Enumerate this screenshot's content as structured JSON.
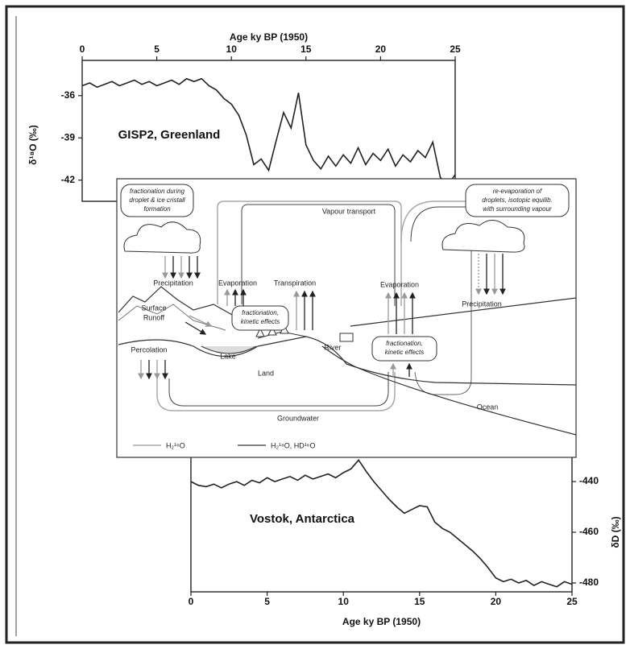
{
  "chart_data": [
    {
      "type": "line",
      "xlabel": "Age ky BP (1950)",
      "ylabel": "δ¹⁸O (‰)",
      "annotation": "GISP2, Greenland",
      "xaxis": "top",
      "yaxis": "left",
      "color": "#222222",
      "xlim": [
        0,
        25
      ],
      "xticks": [
        0,
        5,
        10,
        15,
        20,
        25
      ],
      "ylim": [
        -43.5,
        -33.5
      ],
      "yticks": [
        -36,
        -39,
        -42
      ],
      "x": [
        0,
        0.5,
        1,
        1.5,
        2,
        2.5,
        3,
        3.5,
        4,
        4.5,
        5,
        5.5,
        6,
        6.5,
        7,
        7.5,
        8,
        8.5,
        9,
        9.5,
        10,
        10.5,
        11,
        11.5,
        12,
        12.5,
        13,
        13.5,
        14,
        14.5,
        15,
        15.5,
        16,
        16.5,
        17,
        17.5,
        18,
        18.5,
        19,
        19.5,
        20,
        20.5,
        21,
        21.5,
        22,
        22.5,
        23,
        23.5,
        24,
        24.5,
        25
      ],
      "values": [
        -35.3,
        -35.1,
        -35.4,
        -35.2,
        -35.0,
        -35.3,
        -35.1,
        -34.9,
        -35.2,
        -35.0,
        -35.3,
        -35.1,
        -34.9,
        -35.2,
        -34.8,
        -35.0,
        -34.8,
        -35.3,
        -35.6,
        -36.2,
        -36.6,
        -37.4,
        -38.8,
        -40.9,
        -40.5,
        -41.3,
        -39.2,
        -37.2,
        -38.3,
        -35.8,
        -39.5,
        -40.6,
        -41.2,
        -40.3,
        -41.0,
        -40.2,
        -40.8,
        -39.7,
        -40.9,
        -40.1,
        -40.6,
        -39.8,
        -41.0,
        -40.2,
        -40.7,
        -39.9,
        -40.4,
        -39.3,
        -41.8,
        -42.4,
        -41.6
      ]
    },
    {
      "type": "line",
      "xlabel": "Age ky BP (1950)",
      "ylabel": "δD (‰)",
      "annotation": "Vostok, Antarctica",
      "xaxis": "bottom",
      "yaxis": "right",
      "color": "#222222",
      "xlim": [
        0,
        25
      ],
      "xticks": [
        0,
        5,
        10,
        15,
        20,
        25
      ],
      "ylim": [
        -483.5,
        -429.5
      ],
      "yticks": [
        -440,
        -460,
        -480
      ],
      "x": [
        0,
        0.5,
        1,
        1.5,
        2,
        2.5,
        3,
        3.5,
        4,
        4.5,
        5,
        5.5,
        6,
        6.5,
        7,
        7.5,
        8,
        8.5,
        9,
        9.5,
        10,
        10.5,
        11,
        11.5,
        12,
        12.5,
        13,
        13.5,
        14,
        14.5,
        15,
        15.5,
        16,
        16.5,
        17,
        17.5,
        18,
        18.5,
        19,
        19.5,
        20,
        20.5,
        21,
        21.5,
        22,
        22.5,
        23,
        23.5,
        24,
        24.5,
        25
      ],
      "values": [
        -440,
        -441.5,
        -442,
        -441,
        -442.5,
        -441,
        -440,
        -441.5,
        -439.5,
        -440.5,
        -438.5,
        -440,
        -439,
        -438,
        -439.5,
        -437.5,
        -439,
        -438,
        -437,
        -438.5,
        -436.5,
        -435,
        -431.5,
        -436,
        -440,
        -443.5,
        -447,
        -450,
        -452.5,
        -451,
        -449.5,
        -450,
        -456,
        -458.5,
        -460,
        -462.5,
        -465,
        -467.5,
        -470.5,
        -474,
        -478,
        -479.5,
        -478.5,
        -480,
        -479,
        -481,
        -479.5,
        -480.5,
        -481.5,
        -479.5,
        -480.5
      ]
    }
  ],
  "diagram": {
    "note_left": [
      "fractionation during",
      "droplet & ice cristall",
      "formation"
    ],
    "note_right": [
      "re-evaporation of",
      "droplets, isotopic equilib.",
      "with surrounding vapour"
    ],
    "vapour_transport": "Vapour transport",
    "precipitation_left": "Precipitation",
    "evaporation_left": "Evaporation",
    "transpiration": "Transpiration",
    "evaporation_right": "Evaporation",
    "precipitation_right": "Precipitation",
    "surface_runoff": [
      "Surface",
      "Runoff"
    ],
    "kinetic_left": [
      "fractionation,",
      "kinetic effects"
    ],
    "kinetic_right": [
      "fractionation,",
      "kinetic effects"
    ],
    "percolation": "Percolation",
    "lake": "Lake",
    "river": "River",
    "land": "Land",
    "ocean": "Ocean",
    "groundwater": "Groundwater",
    "legend": [
      "H₂¹⁶O",
      "H₂¹⁸O, HD¹⁶O"
    ]
  }
}
